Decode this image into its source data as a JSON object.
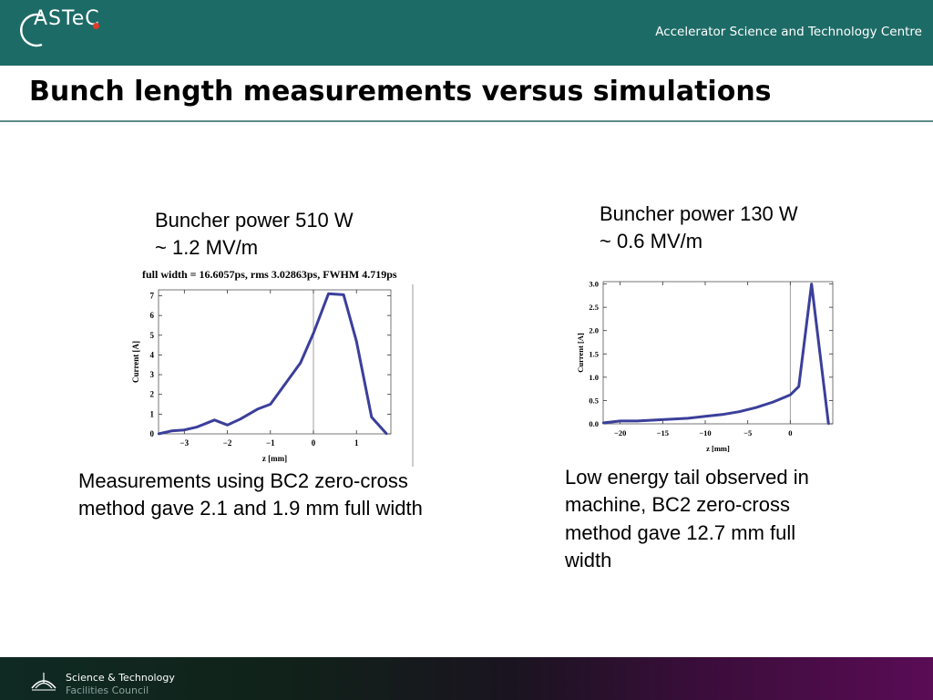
{
  "header": {
    "logo_text": "ASTeC",
    "centre_name": "Accelerator Science and Technology Centre",
    "brand_color": "#1d6b66"
  },
  "slide": {
    "title": "Bunch length measurements versus simulations"
  },
  "left_panel": {
    "heading_line1": "Buncher power 510 W",
    "heading_line2": "~ 1.2 MV/m",
    "chart_caption": "full width = 16.6057ps, rms 3.02863ps, FWHM 4.719ps",
    "note_line1": "Measurements using BC2 zero-cross",
    "note_line2": "method gave 2.1 and 1.9 mm full width"
  },
  "right_panel": {
    "heading_line1": "Buncher power 130 W",
    "heading_line2": "~ 0.6 MV/m",
    "note_line1": "Low energy tail observed in",
    "note_line2": "machine, BC2 zero-cross",
    "note_line3": "method gave 12.7 mm full",
    "note_line4": "width"
  },
  "footer": {
    "line1": "Science & Technology",
    "line2": "Facilities Council"
  },
  "chart_data": [
    {
      "type": "line",
      "xlabel": "z [mm]",
      "ylabel": "Current [A]",
      "xlim": [
        -3.6,
        1.8
      ],
      "ylim": [
        0,
        7.3
      ],
      "xticks": [
        -3,
        -2,
        -1,
        0,
        1
      ],
      "yticks": [
        0,
        1,
        2,
        3,
        4,
        5,
        6,
        7
      ],
      "color": "#3b3f9a",
      "grid": false,
      "x": [
        -3.6,
        -3.3,
        -3.0,
        -2.7,
        -2.3,
        -2.0,
        -1.7,
        -1.3,
        -1.0,
        -0.7,
        -0.3,
        0.0,
        0.35,
        0.7,
        1.0,
        1.35,
        1.7
      ],
      "y": [
        0.0,
        0.15,
        0.2,
        0.35,
        0.7,
        0.45,
        0.75,
        1.25,
        1.5,
        2.4,
        3.6,
        5.1,
        7.1,
        7.05,
        4.7,
        0.85,
        0.0
      ]
    },
    {
      "type": "line",
      "xlabel": "z [mm]",
      "ylabel": "Current [A]",
      "xlim": [
        -22,
        5
      ],
      "ylim": [
        0,
        3.05
      ],
      "xticks": [
        -20,
        -15,
        -10,
        -5,
        0
      ],
      "yticks": [
        0.0,
        0.5,
        1.0,
        1.5,
        2.0,
        2.5,
        3.0
      ],
      "color": "#3b3f9a",
      "grid": false,
      "x": [
        -22,
        -20,
        -18,
        -16,
        -14,
        -12,
        -10,
        -8,
        -6,
        -4,
        -2,
        0,
        1,
        2.5,
        4.5
      ],
      "y": [
        0.02,
        0.06,
        0.06,
        0.08,
        0.1,
        0.12,
        0.16,
        0.2,
        0.26,
        0.35,
        0.47,
        0.62,
        0.8,
        3.0,
        0.0
      ]
    }
  ]
}
